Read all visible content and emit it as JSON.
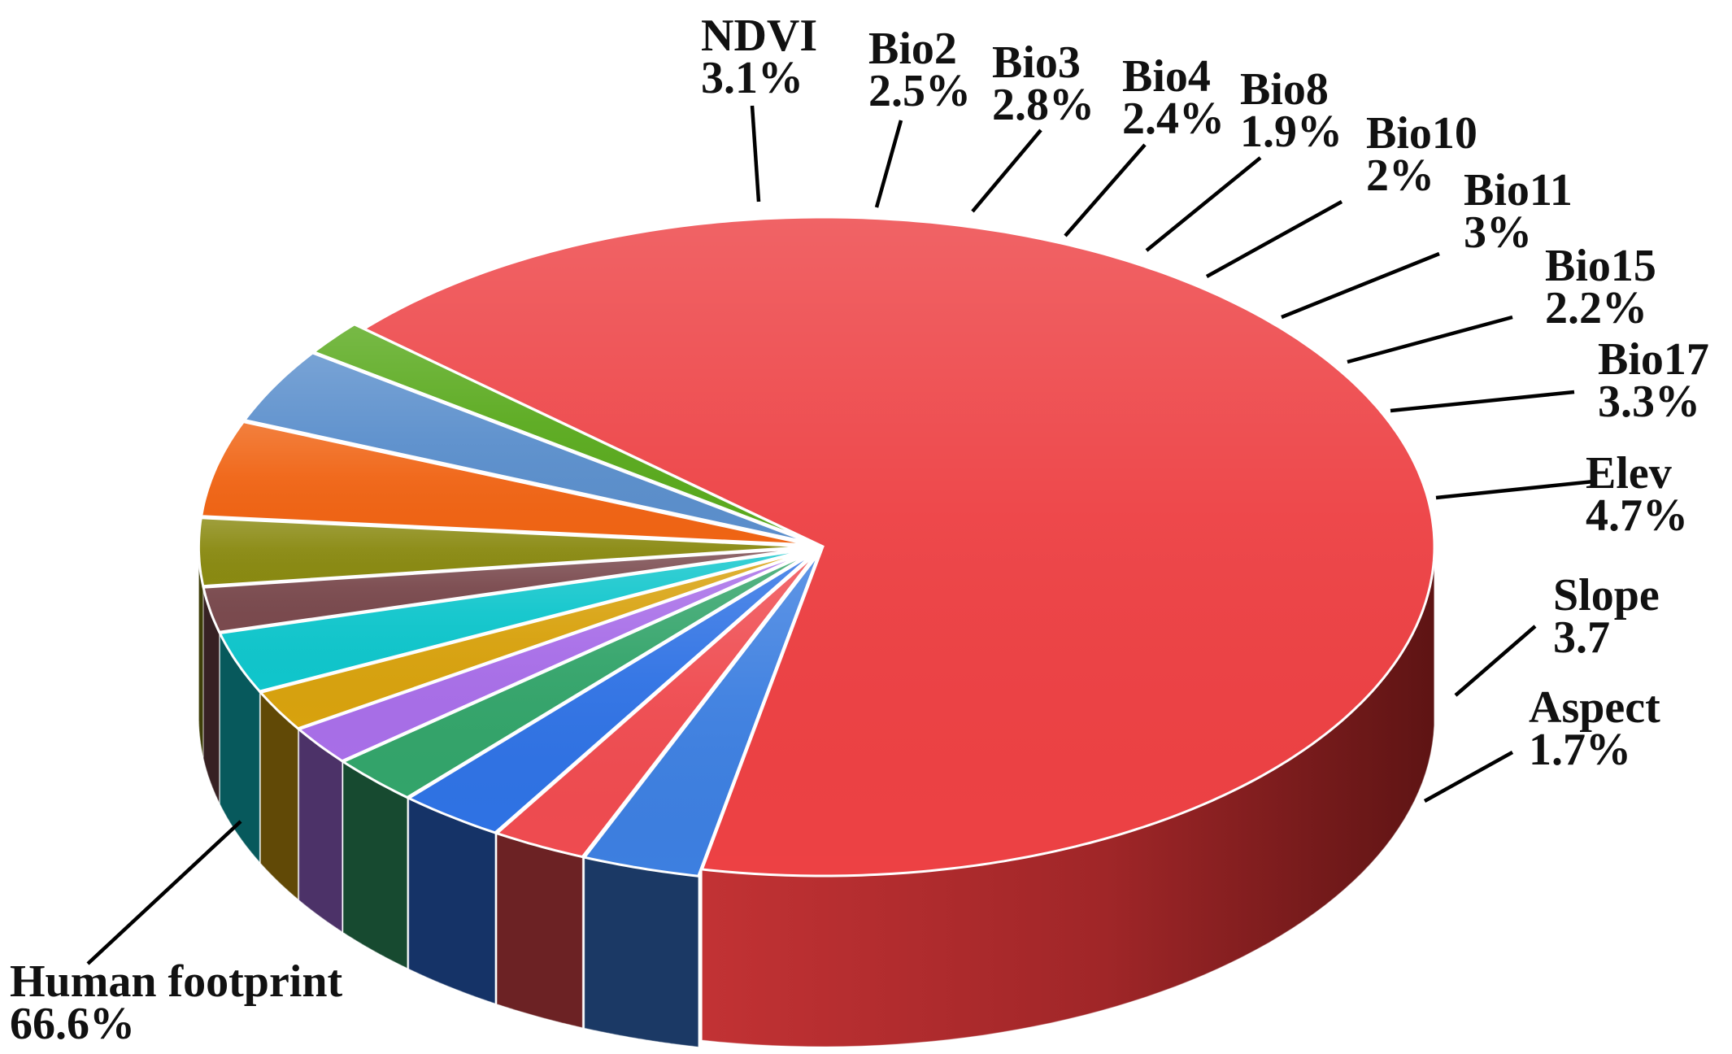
{
  "chart_data": {
    "type": "pie",
    "title": "",
    "style": "3d-exploded",
    "slices": [
      {
        "label": "Human footprint",
        "value_text": "66.6%",
        "value": 66.6,
        "color": "#ed4144"
      },
      {
        "label": "NDVI",
        "value_text": "3.1%",
        "value": 3.1,
        "color": "#3d7fe0"
      },
      {
        "label": "Bio2",
        "value_text": "2.5%",
        "value": 2.5,
        "color": "#ef4b50"
      },
      {
        "label": "Bio3",
        "value_text": "2.8%",
        "value": 2.8,
        "color": "#2f72e4"
      },
      {
        "label": "Bio4",
        "value_text": "2.4%",
        "value": 2.4,
        "color": "#33a46a"
      },
      {
        "label": "Bio8",
        "value_text": "1.9%",
        "value": 1.9,
        "color": "#a86ee8"
      },
      {
        "label": "Bio10",
        "value_text": "2%",
        "value": 2.0,
        "color": "#d8a20e"
      },
      {
        "label": "Bio11",
        "value_text": "3%",
        "value": 3.0,
        "color": "#10c6cc"
      },
      {
        "label": "Bio15",
        "value_text": "2.2%",
        "value": 2.2,
        "color": "#7a4a4e"
      },
      {
        "label": "Bio17",
        "value_text": "3.3%",
        "value": 3.3,
        "color": "#8a8a12"
      },
      {
        "label": "Elev",
        "value_text": "4.7%",
        "value": 4.7,
        "color": "#f06414"
      },
      {
        "label": "Slope",
        "value_text": "3.7",
        "value": 3.7,
        "color": "#5b8fcc"
      },
      {
        "label": "Aspect",
        "value_text": "1.7%",
        "value": 1.7,
        "color": "#5aaa1e"
      }
    ]
  }
}
